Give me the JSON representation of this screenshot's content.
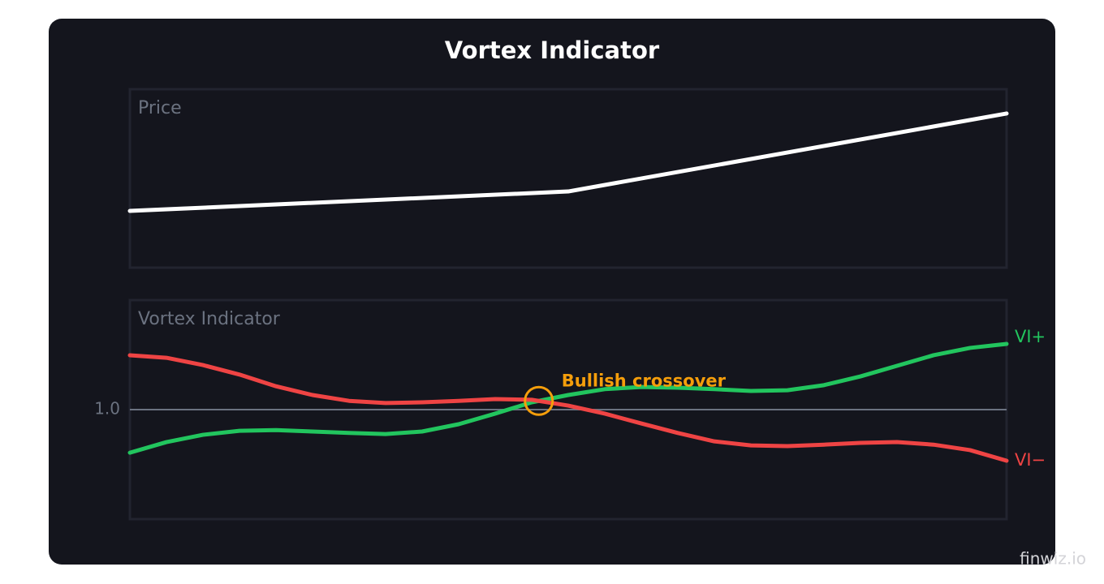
{
  "title": "Vortex Indicator",
  "watermark": "finwiz.io",
  "chart_data": [
    {
      "type": "line",
      "title": "Price",
      "categories": [
        null,
        null,
        null
      ],
      "series": [
        {
          "color": "#ffffff",
          "values": [
            31.8,
            42.7,
            86.4
          ]
        }
      ],
      "ylim": [
        0,
        100
      ]
    },
    {
      "type": "line",
      "title": "Vortex Indicator",
      "categories": [
        null,
        null,
        null,
        null,
        null,
        null,
        null,
        null,
        null,
        null,
        null,
        null,
        null,
        null,
        null,
        null,
        null,
        null,
        null,
        null,
        null,
        null,
        null,
        null,
        null
      ],
      "series": [
        {
          "name": "VI+",
          "color": "#22c55e",
          "values": [
            0.882,
            0.911,
            0.931,
            0.942,
            0.944,
            0.94,
            0.936,
            0.933,
            0.94,
            0.96,
            0.989,
            1.02,
            1.04,
            1.056,
            1.062,
            1.06,
            1.056,
            1.051,
            1.053,
            1.067,
            1.091,
            1.12,
            1.149,
            1.169,
            1.18
          ]
        },
        {
          "name": "VI−",
          "color": "#ef4444",
          "values": [
            1.149,
            1.142,
            1.122,
            1.096,
            1.064,
            1.04,
            1.024,
            1.018,
            1.02,
            1.024,
            1.029,
            1.027,
            1.011,
            0.989,
            0.962,
            0.936,
            0.913,
            0.902,
            0.9,
            0.904,
            0.909,
            0.911,
            0.904,
            0.889,
            0.86
          ]
        }
      ],
      "ylim": [
        0.7,
        1.3
      ],
      "yticks": [
        {
          "value": 1,
          "label": "1.0"
        }
      ],
      "annotation": {
        "text": "Bullish crossover",
        "color": "#f59e0b"
      }
    }
  ]
}
